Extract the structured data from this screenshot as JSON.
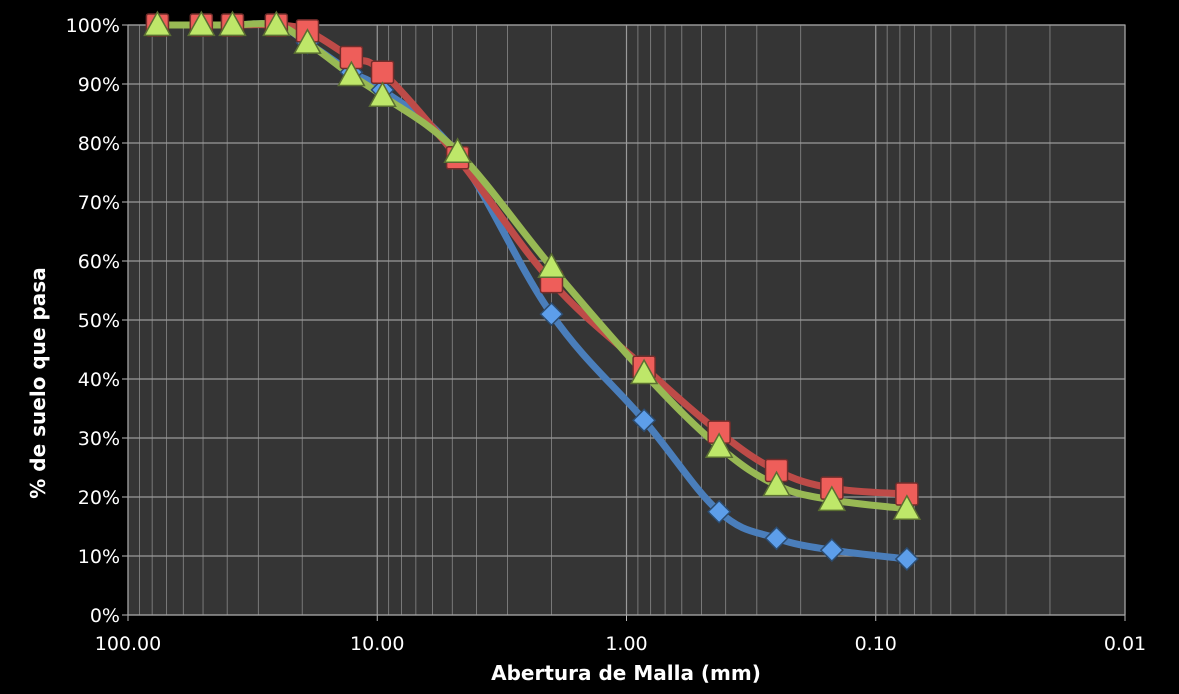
{
  "chart_data": {
    "type": "line",
    "title": "",
    "xlabel": "Abertura de Malla (mm)",
    "ylabel": "% de suelo que pasa",
    "x_scale": "log",
    "x_reversed": true,
    "xlim": [
      100,
      0.01
    ],
    "ylim": [
      0,
      1
    ],
    "x_tick_labels": [
      "100.00",
      "10.00",
      "1.00",
      "0.10",
      "0.01"
    ],
    "x_tick_values": [
      100,
      10,
      1,
      0.1,
      0.01
    ],
    "y_tick_labels": [
      "0%",
      "10%",
      "20%",
      "30%",
      "40%",
      "50%",
      "60%",
      "70%",
      "80%",
      "90%",
      "100%"
    ],
    "y_tick_values": [
      0,
      0.1,
      0.2,
      0.3,
      0.4,
      0.5,
      0.6,
      0.7,
      0.8,
      0.9,
      1.0
    ],
    "grid": true,
    "legend": "none",
    "x": [
      76.2,
      50.8,
      38.1,
      25.4,
      19.05,
      12.7,
      9.525,
      4.76,
      2.0,
      0.85,
      0.425,
      0.25,
      0.15,
      0.075
    ],
    "series": [
      {
        "color": "#4a7ebb",
        "marker": "diamond",
        "values": [
          1.0,
          1.0,
          1.0,
          1.0,
          0.97,
          0.92,
          0.89,
          0.78,
          0.51,
          0.33,
          0.175,
          0.13,
          0.11,
          0.095
        ]
      },
      {
        "color": "#be4b48",
        "marker": "square",
        "values": [
          1.0,
          1.0,
          1.0,
          1.0,
          0.99,
          0.945,
          0.92,
          0.775,
          0.565,
          0.42,
          0.31,
          0.245,
          0.215,
          0.205
        ]
      },
      {
        "color": "#98b954",
        "marker": "triangle",
        "values": [
          1.0,
          1.0,
          1.0,
          1.0,
          0.97,
          0.915,
          0.88,
          0.785,
          0.59,
          0.41,
          0.285,
          0.22,
          0.195,
          0.18
        ]
      }
    ]
  }
}
